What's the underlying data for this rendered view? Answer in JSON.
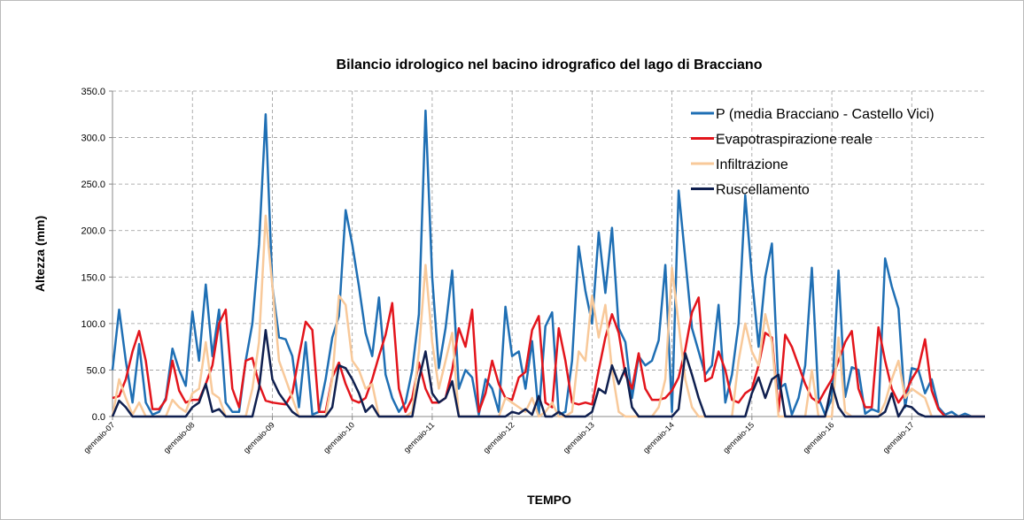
{
  "chart_data": {
    "type": "line",
    "title": "Bilancio idrologico nel bacino idrografico del lago di Bracciano",
    "x_label": "TEMPO",
    "y_label": "Altezza (mm)",
    "categories": [
      "gennaio-07",
      null,
      null,
      null,
      null,
      null,
      null,
      null,
      null,
      null,
      null,
      null,
      "gennaio-08",
      null,
      null,
      null,
      null,
      null,
      null,
      null,
      null,
      null,
      null,
      null,
      "gennaio-09",
      null,
      null,
      null,
      null,
      null,
      null,
      null,
      null,
      null,
      null,
      null,
      "gennaio-10",
      null,
      null,
      null,
      null,
      null,
      null,
      null,
      null,
      null,
      null,
      null,
      "gennaio-11",
      null,
      null,
      null,
      null,
      null,
      null,
      null,
      null,
      null,
      null,
      null,
      "gennaio-12",
      null,
      null,
      null,
      null,
      null,
      null,
      null,
      null,
      null,
      null,
      null,
      "gennaio-13",
      null,
      null,
      null,
      null,
      null,
      null,
      null,
      null,
      null,
      null,
      null,
      "gennaio-14",
      null,
      null,
      null,
      null,
      null,
      null,
      null,
      null,
      null,
      null,
      null,
      "gennaio-15",
      null,
      null,
      null,
      null,
      null,
      null,
      null,
      null,
      null,
      null,
      null,
      "gennaio-16",
      null,
      null,
      null,
      null,
      null,
      null,
      null,
      null,
      null,
      null,
      null,
      "gennaio-17",
      null,
      null,
      null,
      null,
      null,
      null,
      null,
      null,
      null,
      null,
      null
    ],
    "series": [
      {
        "name": "P (media Bracciano - Castello Vici)",
        "color": "#1f6fb4",
        "values": [
          50,
          115,
          60,
          15,
          78,
          15,
          2,
          5,
          20,
          73,
          50,
          33,
          113,
          60,
          142,
          65,
          115,
          15,
          5,
          5,
          60,
          100,
          185,
          325,
          140,
          85,
          83,
          65,
          10,
          80,
          2,
          5,
          40,
          85,
          108,
          222,
          185,
          140,
          90,
          65,
          128,
          45,
          20,
          5,
          15,
          50,
          110,
          329,
          150,
          52,
          95,
          157,
          30,
          50,
          42,
          2,
          40,
          30,
          5,
          118,
          65,
          70,
          30,
          81,
          2,
          97,
          112,
          2,
          5,
          60,
          183,
          135,
          100,
          198,
          133,
          203,
          95,
          80,
          20,
          65,
          55,
          60,
          82,
          163,
          5,
          243,
          170,
          95,
          70,
          45,
          55,
          120,
          15,
          45,
          100,
          238,
          150,
          75,
          150,
          186,
          30,
          35,
          2,
          20,
          55,
          160,
          20,
          2,
          20,
          157,
          21,
          53,
          50,
          3,
          8,
          5,
          170,
          140,
          116,
          10,
          52,
          50,
          25,
          40,
          10,
          2,
          5,
          0,
          3,
          0,
          0,
          0
        ]
      },
      {
        "name": "Evapotraspirazione reale",
        "color": "#e3151c",
        "values": [
          20,
          22,
          40,
          70,
          92,
          60,
          8,
          8,
          18,
          60,
          28,
          15,
          18,
          18,
          35,
          55,
          100,
          115,
          30,
          10,
          60,
          63,
          35,
          17,
          15,
          14,
          13,
          25,
          65,
          102,
          93,
          5,
          5,
          42,
          58,
          35,
          18,
          15,
          20,
          40,
          65,
          88,
          122,
          30,
          5,
          20,
          58,
          30,
          15,
          15,
          20,
          50,
          95,
          75,
          115,
          5,
          25,
          60,
          35,
          20,
          18,
          42,
          48,
          93,
          108,
          15,
          10,
          95,
          60,
          15,
          13,
          15,
          13,
          50,
          85,
          110,
          90,
          45,
          30,
          68,
          30,
          18,
          18,
          20,
          28,
          42,
          72,
          112,
          128,
          38,
          42,
          70,
          50,
          18,
          15,
          25,
          30,
          55,
          90,
          85,
          5,
          88,
          75,
          55,
          35,
          20,
          15,
          28,
          40,
          60,
          80,
          92,
          30,
          10,
          10,
          96,
          60,
          30,
          15,
          25,
          40,
          52,
          83,
          28,
          8,
          0,
          0,
          0,
          0,
          0,
          0,
          0
        ]
      },
      {
        "name": "Infiltrazione",
        "color": "#f8c99a",
        "values": [
          0,
          40,
          20,
          2,
          15,
          0,
          0,
          0,
          0,
          18,
          10,
          5,
          25,
          30,
          80,
          25,
          20,
          0,
          0,
          0,
          0,
          30,
          80,
          216,
          140,
          60,
          40,
          20,
          0,
          0,
          0,
          0,
          0,
          40,
          130,
          120,
          60,
          50,
          30,
          35,
          0,
          0,
          0,
          0,
          0,
          5,
          70,
          163,
          80,
          30,
          60,
          90,
          0,
          0,
          0,
          0,
          0,
          0,
          0,
          20,
          15,
          10,
          5,
          20,
          0,
          5,
          15,
          0,
          0,
          5,
          70,
          60,
          130,
          85,
          120,
          50,
          5,
          0,
          0,
          0,
          0,
          0,
          10,
          40,
          160,
          100,
          40,
          10,
          0,
          0,
          0,
          0,
          0,
          0,
          60,
          100,
          70,
          55,
          110,
          80,
          0,
          0,
          0,
          0,
          0,
          50,
          0,
          0,
          0,
          85,
          5,
          0,
          0,
          0,
          0,
          0,
          15,
          40,
          60,
          20,
          30,
          25,
          20,
          0,
          0,
          0,
          0,
          0,
          0,
          0,
          0,
          0
        ]
      },
      {
        "name": "Ruscellamento",
        "color": "#0f1f4f",
        "values": [
          0,
          17,
          10,
          0,
          0,
          0,
          0,
          0,
          0,
          0,
          0,
          0,
          10,
          15,
          35,
          5,
          8,
          0,
          0,
          0,
          0,
          0,
          30,
          93,
          40,
          25,
          15,
          5,
          0,
          0,
          0,
          0,
          0,
          10,
          55,
          52,
          40,
          25,
          5,
          12,
          0,
          0,
          0,
          0,
          0,
          0,
          40,
          70,
          25,
          15,
          20,
          38,
          0,
          0,
          0,
          0,
          0,
          0,
          0,
          0,
          5,
          3,
          8,
          2,
          22,
          0,
          0,
          5,
          0,
          0,
          0,
          0,
          5,
          30,
          25,
          55,
          35,
          52,
          10,
          0,
          0,
          0,
          0,
          0,
          0,
          8,
          68,
          45,
          20,
          0,
          0,
          0,
          0,
          0,
          0,
          0,
          25,
          42,
          20,
          40,
          45,
          0,
          0,
          0,
          0,
          0,
          0,
          0,
          35,
          10,
          0,
          0,
          0,
          0,
          0,
          0,
          5,
          25,
          0,
          12,
          10,
          3,
          0,
          0,
          0,
          0,
          0,
          0,
          0,
          0,
          0,
          0
        ]
      }
    ],
    "ylim": [
      0,
      350
    ],
    "yticks": [
      {
        "value": 0,
        "label": "0.0"
      },
      {
        "value": 50,
        "label": "50.0"
      },
      {
        "value": 100,
        "label": "100.0"
      },
      {
        "value": 150,
        "label": "150.0"
      },
      {
        "value": 200,
        "label": "200.0"
      },
      {
        "value": 250,
        "label": "250.0"
      },
      {
        "value": 300,
        "label": "300.0"
      },
      {
        "value": 350,
        "label": "350.0"
      }
    ],
    "grid": true,
    "legend": "top-right"
  }
}
